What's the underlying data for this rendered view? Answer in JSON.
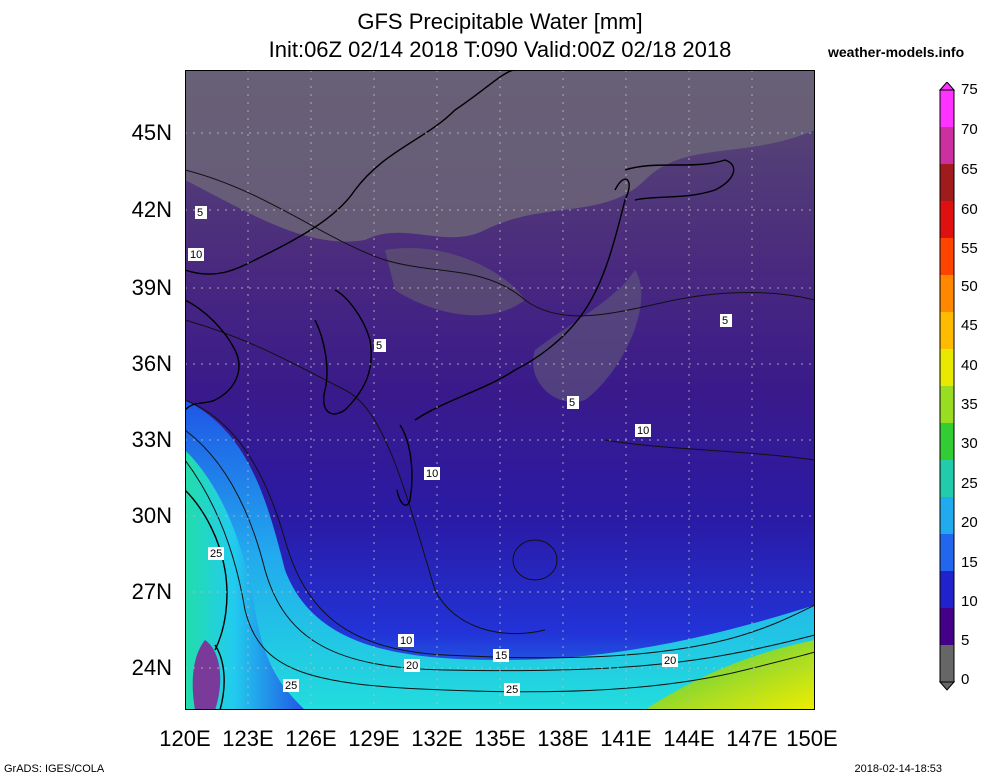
{
  "title": {
    "line1": "GFS Precipitable Water [mm]",
    "line2": "Init:06Z 02/14 2018 T:090 Valid:00Z 02/18 2018"
  },
  "site": "weather-models.info",
  "map": {
    "lat_labels": [
      "45N",
      "42N",
      "39N",
      "36N",
      "33N",
      "30N",
      "27N",
      "24N"
    ],
    "lon_labels": [
      "120E",
      "123E",
      "126E",
      "129E",
      "132E",
      "135E",
      "138E",
      "141E",
      "144E",
      "147E",
      "150E"
    ],
    "lat_range": [
      22.5,
      47.5
    ],
    "lon_range": [
      120,
      150
    ],
    "contour_labels": [
      "5",
      "10",
      "5",
      "5",
      "10",
      "10",
      "10",
      "15",
      "20",
      "20",
      "25",
      "25",
      "25",
      "5"
    ],
    "grid": "dotted"
  },
  "colorbar": {
    "labels": [
      "75",
      "70",
      "65",
      "60",
      "55",
      "50",
      "45",
      "40",
      "35",
      "30",
      "25",
      "20",
      "15",
      "10",
      "5",
      "0"
    ],
    "colors": [
      "#ff33ff",
      "#cc2fa0",
      "#a01c1c",
      "#e01010",
      "#ff4400",
      "#ff8800",
      "#ffbb00",
      "#e8e800",
      "#99dd22",
      "#33cc33",
      "#22ccaa",
      "#22aaee",
      "#2266ee",
      "#2222cc",
      "#440088",
      "#666666"
    ]
  },
  "footer": {
    "left": "GrADS: IGES/COLA",
    "right": "2018-02-14-18:53"
  }
}
